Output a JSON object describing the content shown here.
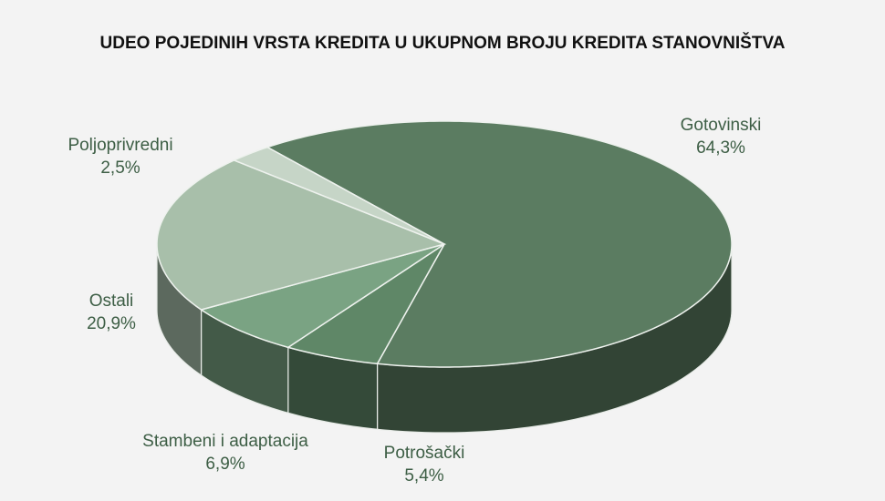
{
  "chart_data": {
    "type": "pie",
    "title": "UDEO POJEDINIH VRSTA KREDITA U UKUPNOM BROJU KREDITA STANOVNIŠTVA",
    "categories": [
      "Gotovinski",
      "Potrošački",
      "Stambeni i adaptacija",
      "Ostali",
      "Poljoprivredni"
    ],
    "values": [
      64.3,
      5.4,
      6.9,
      20.9,
      2.5
    ],
    "value_labels": [
      "64,3%",
      "5,4%",
      "6,9%",
      "20,9%",
      "2,5%"
    ],
    "colors": [
      "#5b7c61",
      "#5f8767",
      "#7aa383",
      "#a8bfaa",
      "#c6d5c7"
    ]
  }
}
